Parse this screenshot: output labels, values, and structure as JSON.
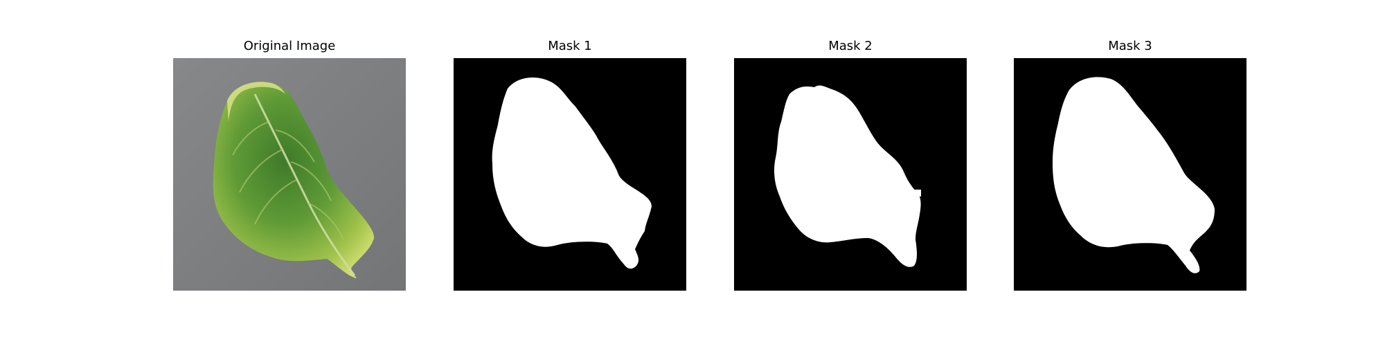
{
  "panels": [
    {
      "title": "Original Image"
    },
    {
      "title": "Mask 1"
    },
    {
      "title": "Mask 2"
    },
    {
      "title": "Mask 3"
    }
  ],
  "colors": {
    "background": "#ffffff",
    "mask_background": "#000000",
    "mask_foreground": "#ffffff",
    "photo_backdrop": "#7d7f80",
    "leaf_light": "#c8d86a",
    "leaf_mid": "#7fb23e",
    "leaf_dark": "#3f7a2a"
  }
}
